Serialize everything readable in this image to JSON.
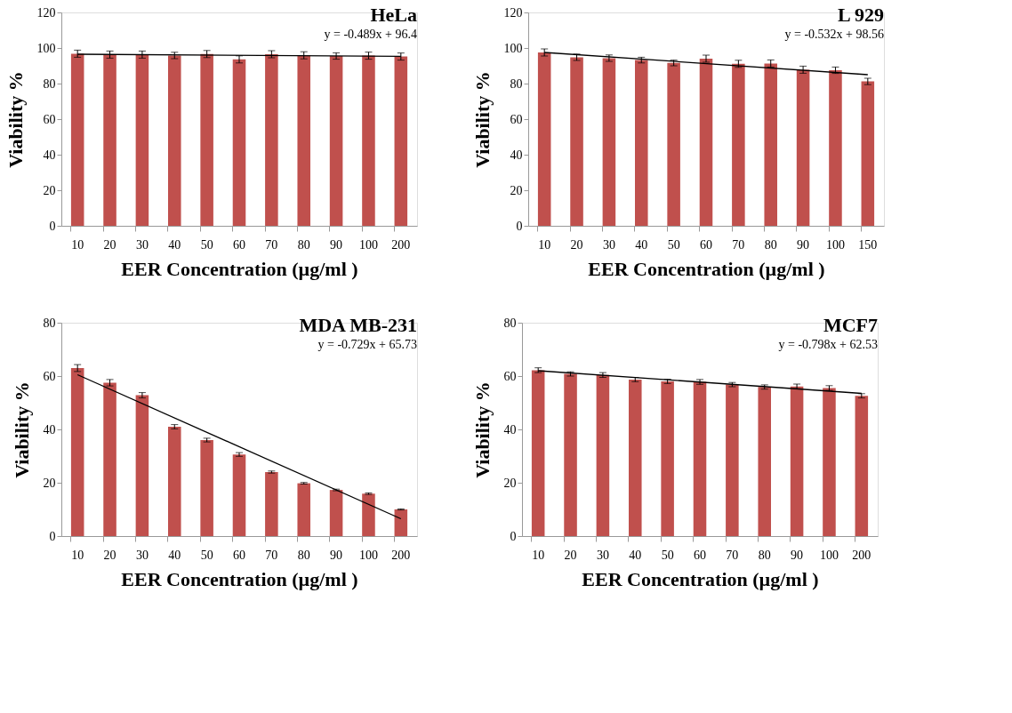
{
  "chart_data": [
    {
      "type": "bar",
      "title": "HeLa",
      "xlabel": "EER Concentration (µg/ml )",
      "ylabel": "Viability %",
      "categories": [
        "10",
        "20",
        "30",
        "40",
        "50",
        "60",
        "70",
        "80",
        "90",
        "100",
        "200"
      ],
      "ylim": [
        0,
        120
      ],
      "yticks": [
        0,
        20,
        40,
        60,
        80,
        100,
        120
      ],
      "grid": false,
      "annotations": [
        "y = -0.489x + 96.4"
      ],
      "series": [
        {
          "color": "#c0504d",
          "values": [
            96.8,
            96.3,
            96.3,
            95.8,
            96.6,
            93.6,
            96.5,
            95.9,
            95.5,
            95.7,
            95.2
          ],
          "errors": [
            2,
            2,
            2,
            1.8,
            2,
            2,
            2,
            2,
            1.8,
            2,
            2
          ]
        },
        {
          "type": "line",
          "color": "#000000",
          "x": [
            "10",
            "200"
          ],
          "values": [
            96.5,
            95.3
          ]
        }
      ]
    },
    {
      "type": "bar",
      "title": "L 929",
      "xlabel": "EER Concentration (µg/ml )",
      "ylabel": "Viability %",
      "categories": [
        "10",
        "20",
        "30",
        "40",
        "50",
        "60",
        "70",
        "80",
        "90",
        "100",
        "150"
      ],
      "ylim": [
        0,
        120
      ],
      "yticks": [
        0,
        20,
        40,
        60,
        80,
        100,
        120
      ],
      "grid": false,
      "annotations": [
        "y = -0.532x + 98.56"
      ],
      "series": [
        {
          "color": "#c0504d",
          "values": [
            97.5,
            94.8,
            94.3,
            93.2,
            91.6,
            94,
            91.1,
            91.3,
            87.8,
            87.5,
            81.2
          ],
          "errors": [
            2,
            1.8,
            1.8,
            1.6,
            1.6,
            2,
            2,
            2,
            2,
            1.8,
            1.8
          ]
        },
        {
          "type": "line",
          "color": "#000000",
          "x": [
            "10",
            "150"
          ],
          "values": [
            97.5,
            85
          ]
        }
      ]
    },
    {
      "type": "bar",
      "title": "MDA MB-231",
      "xlabel": "EER Concentration (µg/ml )",
      "ylabel": "Viability %",
      "categories": [
        "10",
        "20",
        "30",
        "40",
        "50",
        "60",
        "70",
        "80",
        "90",
        "100",
        "200"
      ],
      "ylim": [
        0,
        80
      ],
      "yticks": [
        0,
        20,
        40,
        60,
        80
      ],
      "grid": false,
      "annotations": [
        "y = -0.729x + 65.73"
      ],
      "series": [
        {
          "color": "#c0504d",
          "values": [
            63,
            57.5,
            52.8,
            41,
            36,
            30.6,
            24,
            19.8,
            17.3,
            15.9,
            10
          ],
          "errors": [
            1.3,
            1.2,
            1,
            0.8,
            0.7,
            0.7,
            0.4,
            0.3,
            0.3,
            0.3,
            0.2
          ]
        },
        {
          "type": "line",
          "color": "#000000",
          "x": [
            "10",
            "200"
          ],
          "values": [
            60.5,
            6.5
          ]
        }
      ]
    },
    {
      "type": "bar",
      "title": "MCF7",
      "xlabel": "EER Concentration (µg/ml )",
      "ylabel": "Viability %",
      "categories": [
        "10",
        "20",
        "30",
        "40",
        "50",
        "60",
        "70",
        "80",
        "90",
        "100",
        "200"
      ],
      "ylim": [
        0,
        80
      ],
      "yticks": [
        0,
        20,
        40,
        60,
        80
      ],
      "grid": false,
      "annotations": [
        "y = -0.798x + 62.53"
      ],
      "series": [
        {
          "color": "#c0504d",
          "values": [
            62.2,
            60.8,
            60.4,
            58.7,
            58,
            57.8,
            56.8,
            55.9,
            56.1,
            55.5,
            52.6
          ],
          "errors": [
            0.9,
            0.8,
            0.9,
            0.8,
            0.8,
            0.9,
            0.8,
            0.8,
            0.9,
            0.9,
            0.8
          ]
        },
        {
          "type": "line",
          "color": "#000000",
          "x": [
            "10",
            "200"
          ],
          "values": [
            62,
            53.5
          ]
        }
      ]
    }
  ]
}
